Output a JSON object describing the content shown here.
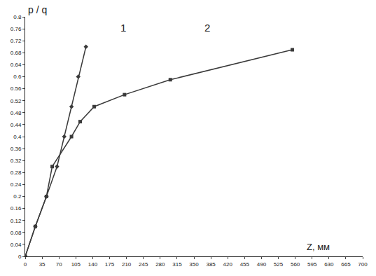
{
  "chart_data": {
    "type": "line",
    "x_label": "Z, мм",
    "y_label": "p / q",
    "series": [
      {
        "name": "1",
        "color": "#3a3a3a",
        "marker": "diamond",
        "line_style": "solid",
        "x": [
          0,
          21,
          44,
          66,
          81,
          96,
          110,
          126
        ],
        "values": [
          0,
          0.1,
          0.2,
          0.3,
          0.4,
          0.5,
          0.6,
          0.7
        ]
      },
      {
        "name": "2",
        "color": "#3a3a3a",
        "marker": "square",
        "line_style": "solid",
        "x": [
          0,
          21,
          44,
          56,
          96,
          114,
          143,
          206,
          301,
          554
        ],
        "values": [
          0,
          0.1,
          0.2,
          0.3,
          0.4,
          0.45,
          0.5,
          0.54,
          0.59,
          0.69
        ]
      }
    ],
    "xlim": [
      0,
      700
    ],
    "xticks": [
      0,
      35,
      70,
      105,
      140,
      175,
      210,
      245,
      280,
      315,
      350,
      385,
      420,
      455,
      490,
      525,
      560,
      595,
      630,
      665,
      700
    ],
    "ylim": [
      0,
      0.8
    ],
    "yticks": [
      0,
      0.04,
      0.08,
      0.12,
      0.16,
      0.2,
      0.24,
      0.28,
      0.32,
      0.36,
      0.4,
      0.44,
      0.48,
      0.52,
      0.56,
      0.6,
      0.64,
      0.68,
      0.72,
      0.76,
      0.8
    ],
    "grid": false
  }
}
